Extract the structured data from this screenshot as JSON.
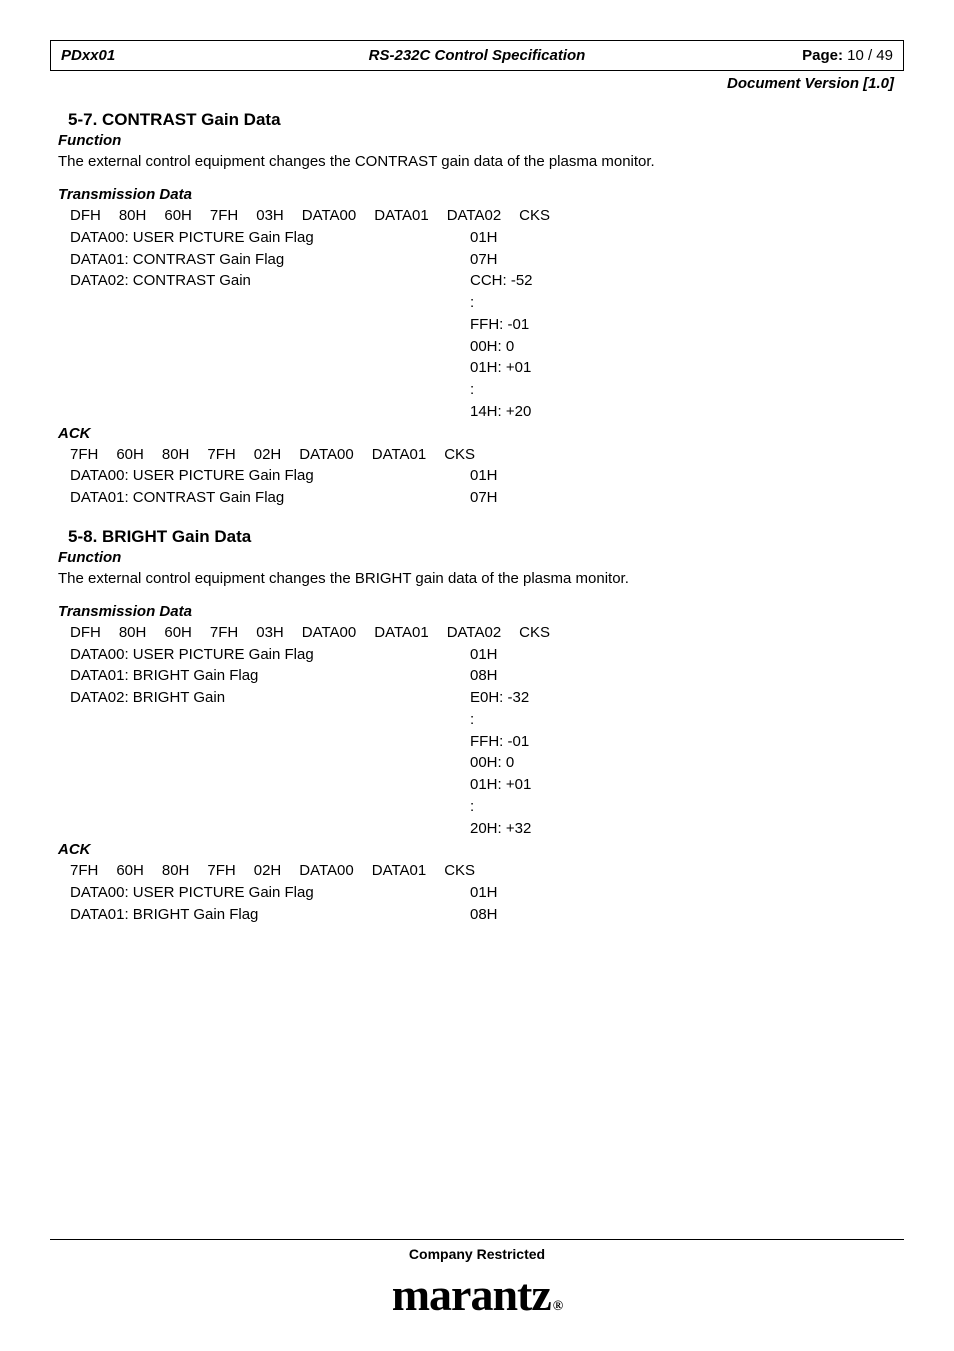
{
  "header": {
    "left": "PDxx01",
    "center": "RS-232C Control Specification",
    "page_label": "Page:",
    "page_value": "10 / 49",
    "version_label": "Document Version [1.0]"
  },
  "sections": {
    "s1": {
      "heading": "5-7. CONTRAST Gain Data",
      "func_label": "Function",
      "func_text": "The external control equipment changes the CONTRAST gain data of the plasma monitor.",
      "td_label": "Transmission Data",
      "td_bytes": [
        "DFH",
        "80H",
        "60H",
        "7FH",
        "03H",
        "DATA00",
        "DATA01",
        "DATA02",
        "CKS"
      ],
      "rows": [
        {
          "l": "DATA00: USER PICTURE Gain Flag",
          "v": "01H"
        },
        {
          "l": "DATA01: CONTRAST Gain Flag",
          "v": "07H"
        },
        {
          "l": "DATA02: CONTRAST Gain",
          "v": "CCH: -52"
        },
        {
          "l": "",
          "v": "   :"
        },
        {
          "l": "",
          "v": "FFH: -01"
        },
        {
          "l": "",
          "v": "00H: 0"
        },
        {
          "l": "",
          "v": "01H: +01"
        },
        {
          "l": "",
          "v": "   :"
        },
        {
          "l": "",
          "v": "14H: +20"
        }
      ],
      "ack_label": "ACK",
      "ack_bytes": [
        "7FH",
        "60H",
        "80H",
        "7FH",
        "02H",
        "DATA00",
        "DATA01",
        "CKS"
      ],
      "ack_rows": [
        {
          "l": "DATA00: USER PICTURE Gain Flag",
          "v": "01H"
        },
        {
          "l": "DATA01: CONTRAST Gain Flag",
          "v": "07H"
        }
      ]
    },
    "s2": {
      "heading": "5-8. BRIGHT Gain Data",
      "func_label": "Function",
      "func_text": "The external control equipment changes the BRIGHT gain data of the plasma monitor.",
      "td_label": "Transmission Data",
      "td_bytes": [
        "DFH",
        "80H",
        "60H",
        "7FH",
        "03H",
        "DATA00",
        "DATA01",
        "DATA02",
        "CKS"
      ],
      "rows": [
        {
          "l": "DATA00: USER PICTURE Gain Flag",
          "v": "01H"
        },
        {
          "l": "DATA01: BRIGHT Gain Flag",
          "v": "08H"
        },
        {
          "l": "DATA02: BRIGHT Gain",
          "v": "E0H: -32"
        },
        {
          "l": "",
          "v": "   :"
        },
        {
          "l": "",
          "v": "FFH: -01"
        },
        {
          "l": "",
          "v": "00H: 0"
        },
        {
          "l": "",
          "v": "01H: +01"
        },
        {
          "l": "",
          "v": "   :"
        },
        {
          "l": "",
          "v": "20H: +32"
        }
      ],
      "ack_label": "ACK",
      "ack_bytes": [
        "7FH",
        "60H",
        "80H",
        "7FH",
        "02H",
        "DATA00",
        "DATA01",
        "CKS"
      ],
      "ack_rows": [
        {
          "l": "DATA00: USER PICTURE Gain Flag",
          "v": "01H"
        },
        {
          "l": "DATA01: BRIGHT Gain Flag",
          "v": "08H"
        }
      ]
    }
  },
  "footer": {
    "restricted": "Company Restricted",
    "logo_text": "marantz",
    "logo_reg": "®"
  }
}
